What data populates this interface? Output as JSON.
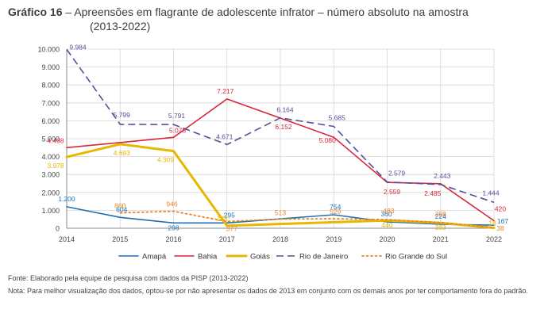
{
  "header": {
    "label": "Gráfico 16",
    "title": "Apreensões em flagrante de adolescente infrator – número absoluto na amostra",
    "subtitle": "(2013-2022)"
  },
  "chart_data": {
    "type": "line",
    "categories": [
      "2014",
      "2015",
      "2016",
      "2017",
      "2018",
      "2019",
      "2020",
      "2021",
      "2022"
    ],
    "ylim": [
      0,
      10000
    ],
    "yticks": [
      "0",
      "1.000",
      "2.000",
      "3.000",
      "4.000",
      "5.000",
      "6.000",
      "7.000",
      "8.000",
      "9.000",
      "10.000"
    ],
    "grid": true,
    "legend_position": "bottom",
    "series": [
      {
        "name": "Amapá",
        "color": "#1f6fb5",
        "style": "solid",
        "values": [
          1200,
          604,
          298,
          295,
          null,
          754,
          360,
          224,
          167
        ],
        "labels": [
          "1.200",
          "604",
          "298",
          "295",
          "",
          "754",
          "360",
          "224",
          "167"
        ]
      },
      {
        "name": "Bahia",
        "color": "#d9253d",
        "style": "solid",
        "values": [
          4498,
          null,
          5076,
          7217,
          6152,
          5080,
          2559,
          2485,
          420
        ],
        "labels": [
          "4.498",
          "",
          "5.076",
          "7.217",
          "6.152",
          "5.080",
          "2.559",
          "2.485",
          "420"
        ]
      },
      {
        "name": "Goiás",
        "color": "#e6b800",
        "style": "thick",
        "values": [
          3978,
          4693,
          4309,
          138,
          null,
          null,
          440,
          303,
          18
        ],
        "labels": [
          "3.978",
          "4.693",
          "4.309",
          "138",
          "",
          "",
          "440",
          "303",
          "18"
        ]
      },
      {
        "name": "Rio de Janeiro",
        "color": "#55509a",
        "style": "dashed",
        "values": [
          9984,
          5799,
          5791,
          4671,
          6164,
          5685,
          2579,
          2443,
          1444
        ],
        "labels": [
          "9.984",
          "5.799",
          "5.791",
          "4.671",
          "6.164",
          "5.685",
          "2.579",
          "2.443",
          "1.444"
        ]
      },
      {
        "name": "Rio Grande do Sul",
        "color": "#e8852b",
        "style": "dotted",
        "values": [
          null,
          860,
          946,
          377,
          513,
          529,
          483,
          308,
          38
        ],
        "labels": [
          "",
          "860",
          "946",
          "377",
          "513",
          "529",
          "483",
          "308",
          "38"
        ]
      }
    ]
  },
  "footer": {
    "source": "Fonte: Elaborado pela equipe de pesquisa com dados da PISP (2013-2022)",
    "note": "Nota: Para melhor visualização dos dados, optou-se por não apresentar os dados de 2013 em conjunto com os demais anos por ter comportamento fora do padrão."
  }
}
